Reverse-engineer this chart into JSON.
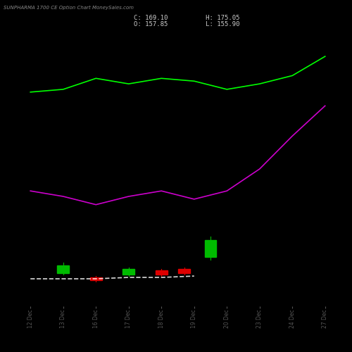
{
  "title": "SUNPHARMA 1700 CE Option Chart MoneySales.com",
  "stats_line1": "C: 169.10          H: 175.05",
  "stats_line2": "O: 157.85          L: 155.90",
  "bg_color": "#000000",
  "text_color": "#ffffff",
  "green_color": "#00ff00",
  "magenta_color": "#cc00cc",
  "candle_green": "#00bb00",
  "candle_red": "#dd0000",
  "x_labels": [
    "12 Dec",
    "13 Dec",
    "16 Dec",
    "17 Dec",
    "18 Dec",
    "19 Dec",
    "20 Dec",
    "23 Dec",
    "24 Dec",
    "27 Dec"
  ],
  "candles": [
    {
      "x": 1,
      "open": 12.0,
      "close": 15.0,
      "high": 15.8,
      "low": 11.5,
      "color": "green"
    },
    {
      "x": 2,
      "open": 10.5,
      "close": 9.5,
      "high": 11.0,
      "low": 9.0,
      "color": "red"
    },
    {
      "x": 3,
      "open": 11.5,
      "close": 13.5,
      "high": 14.0,
      "low": 11.0,
      "color": "green"
    },
    {
      "x": 4,
      "open": 13.0,
      "close": 11.5,
      "high": 13.5,
      "low": 11.0,
      "color": "red"
    },
    {
      "x": 4.7,
      "open": 13.5,
      "close": 12.0,
      "high": 14.0,
      "low": 11.5,
      "color": "red"
    },
    {
      "x": 5.5,
      "open": 18.0,
      "close": 24.0,
      "high": 25.5,
      "low": 17.0,
      "color": "green"
    }
  ],
  "dma_line_x": [
    0,
    1,
    2,
    3,
    4,
    5
  ],
  "dma_line_y": [
    10.0,
    10.0,
    10.0,
    10.5,
    10.5,
    11.0
  ],
  "green_line_x": [
    0,
    1,
    2,
    3,
    4,
    5,
    6,
    7,
    8,
    9
  ],
  "green_line_y": [
    78,
    79,
    83,
    81,
    83,
    82,
    79,
    81,
    84,
    91
  ],
  "magenta_line_x": [
    0,
    1,
    2,
    3,
    4,
    5,
    6,
    7,
    8,
    9
  ],
  "magenta_line_y": [
    42,
    40,
    37,
    40,
    42,
    39,
    42,
    50,
    62,
    73
  ],
  "ylim": [
    0,
    100
  ],
  "xlim": [
    -0.5,
    9.5
  ]
}
